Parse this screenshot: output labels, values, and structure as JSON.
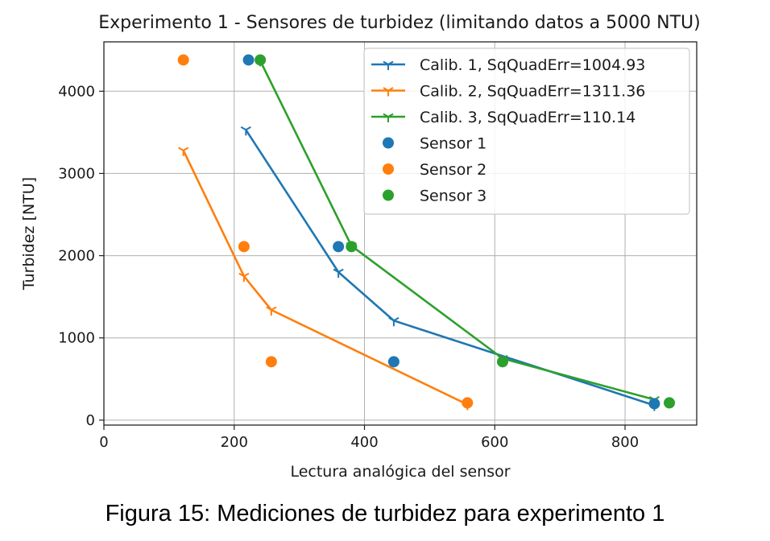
{
  "chart_data": {
    "type": "line",
    "title": "Experimento 1 - Sensores de turbidez (limitando datos a 5000 NTU)",
    "xlabel": "Lectura analógica del sensor",
    "ylabel": "Turbidez [NTU]",
    "xlim": [
      0,
      910
    ],
    "ylim": [
      -60,
      4600
    ],
    "xticks": [
      0,
      200,
      400,
      600,
      800
    ],
    "yticks": [
      0,
      1000,
      2000,
      3000,
      4000
    ],
    "grid": true,
    "legend_position": "top-right",
    "colors": {
      "blue": "#1f77b4",
      "orange": "#ff7f0e",
      "green": "#2ca02c"
    },
    "series": [
      {
        "name": "Calib. 1, SqQuadErr=1004.93",
        "kind": "line",
        "color": "#1f77b4",
        "x": [
          218,
          360,
          445,
          845
        ],
        "y": [
          3530,
          1800,
          1210,
          180
        ]
      },
      {
        "name": "Calib. 2, SqQuadErr=1311.36",
        "kind": "line",
        "color": "#ff7f0e",
        "x": [
          122,
          215,
          257,
          558
        ],
        "y": [
          3280,
          1750,
          1340,
          190
        ]
      },
      {
        "name": "Calib. 3, SqQuadErr=110.14",
        "kind": "line",
        "color": "#2ca02c",
        "x": [
          240,
          380,
          612,
          845
        ],
        "y": [
          4370,
          2120,
          750,
          250
        ]
      },
      {
        "name": "Sensor 1",
        "kind": "scatter",
        "color": "#1f77b4",
        "x": [
          222,
          360,
          445,
          845
        ],
        "y": [
          4380,
          2110,
          710,
          200
        ]
      },
      {
        "name": "Sensor 2",
        "kind": "scatter",
        "color": "#ff7f0e",
        "x": [
          122,
          215,
          257,
          558
        ],
        "y": [
          4380,
          2110,
          710,
          210
        ]
      },
      {
        "name": "Sensor 3",
        "kind": "scatter",
        "color": "#2ca02c",
        "x": [
          240,
          380,
          612,
          868
        ],
        "y": [
          4380,
          2110,
          710,
          210
        ]
      }
    ]
  },
  "caption": "Figura 15: Mediciones de turbidez para experimento 1"
}
